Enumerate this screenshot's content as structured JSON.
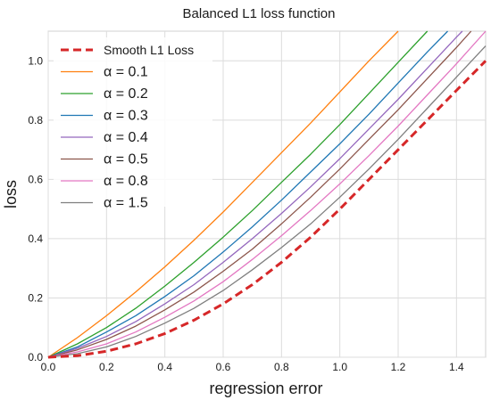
{
  "chart_data": {
    "type": "line",
    "title": "Balanced L1 loss function",
    "xlabel": "regression error",
    "ylabel": "loss",
    "xlim": [
      0,
      1.5
    ],
    "ylim": [
      0,
      1.1
    ],
    "x_ticks": [
      "0.0",
      "0.2",
      "0.4",
      "0.6",
      "0.8",
      "1.0",
      "1.2",
      "1.4"
    ],
    "y_ticks": [
      "0.0",
      "0.2",
      "0.4",
      "0.6",
      "0.8",
      "1.0"
    ],
    "grid": true,
    "legend_position": "top-left",
    "series": [
      {
        "name": "Smooth L1 Loss",
        "style": "dashed",
        "color": "#d62728",
        "points": [
          [
            0,
            0
          ],
          [
            0.1,
            0.005
          ],
          [
            0.2,
            0.02
          ],
          [
            0.3,
            0.045
          ],
          [
            0.4,
            0.08
          ],
          [
            0.5,
            0.125
          ],
          [
            0.6,
            0.18
          ],
          [
            0.7,
            0.245
          ],
          [
            0.8,
            0.32
          ],
          [
            0.9,
            0.405
          ],
          [
            1.0,
            0.5
          ],
          [
            1.1,
            0.6
          ],
          [
            1.2,
            0.7
          ],
          [
            1.3,
            0.8
          ],
          [
            1.4,
            0.9
          ],
          [
            1.5,
            1.0
          ]
        ]
      },
      {
        "name": "α = 0.1",
        "style": "solid",
        "color": "#ff7f0e",
        "points": [
          [
            0,
            0
          ],
          [
            0.1,
            0.066
          ],
          [
            0.2,
            0.14
          ],
          [
            0.3,
            0.22
          ],
          [
            0.4,
            0.305
          ],
          [
            0.5,
            0.395
          ],
          [
            0.6,
            0.49
          ],
          [
            0.7,
            0.59
          ],
          [
            0.8,
            0.69
          ],
          [
            0.9,
            0.79
          ],
          [
            1.0,
            0.895
          ],
          [
            1.1,
            1.0
          ],
          [
            1.2,
            1.1
          ]
        ]
      },
      {
        "name": "α = 0.2",
        "style": "solid",
        "color": "#2ca02c",
        "points": [
          [
            0,
            0
          ],
          [
            0.1,
            0.045
          ],
          [
            0.2,
            0.1
          ],
          [
            0.3,
            0.165
          ],
          [
            0.4,
            0.24
          ],
          [
            0.5,
            0.32
          ],
          [
            0.6,
            0.405
          ],
          [
            0.7,
            0.495
          ],
          [
            0.8,
            0.59
          ],
          [
            0.9,
            0.685
          ],
          [
            1.0,
            0.785
          ],
          [
            1.1,
            0.89
          ],
          [
            1.2,
            0.995
          ],
          [
            1.3,
            1.1
          ]
        ]
      },
      {
        "name": "α = 0.3",
        "style": "solid",
        "color": "#1f77b4",
        "points": [
          [
            0,
            0
          ],
          [
            0.1,
            0.035
          ],
          [
            0.2,
            0.085
          ],
          [
            0.3,
            0.14
          ],
          [
            0.4,
            0.205
          ],
          [
            0.5,
            0.275
          ],
          [
            0.6,
            0.355
          ],
          [
            0.7,
            0.44
          ],
          [
            0.8,
            0.53
          ],
          [
            0.9,
            0.625
          ],
          [
            1.0,
            0.72
          ],
          [
            1.1,
            0.82
          ],
          [
            1.2,
            0.925
          ],
          [
            1.3,
            1.03
          ],
          [
            1.37,
            1.1
          ]
        ]
      },
      {
        "name": "α = 0.4",
        "style": "solid",
        "color": "#9467bd",
        "points": [
          [
            0,
            0
          ],
          [
            0.1,
            0.03
          ],
          [
            0.2,
            0.07
          ],
          [
            0.3,
            0.12
          ],
          [
            0.4,
            0.18
          ],
          [
            0.5,
            0.245
          ],
          [
            0.6,
            0.32
          ],
          [
            0.7,
            0.4
          ],
          [
            0.8,
            0.485
          ],
          [
            0.9,
            0.575
          ],
          [
            1.0,
            0.67
          ],
          [
            1.1,
            0.77
          ],
          [
            1.2,
            0.87
          ],
          [
            1.3,
            0.975
          ],
          [
            1.4,
            1.08
          ],
          [
            1.42,
            1.1
          ]
        ]
      },
      {
        "name": "α = 0.5",
        "style": "solid",
        "color": "#8c564b",
        "points": [
          [
            0,
            0
          ],
          [
            0.1,
            0.025
          ],
          [
            0.2,
            0.06
          ],
          [
            0.3,
            0.105
          ],
          [
            0.4,
            0.16
          ],
          [
            0.5,
            0.22
          ],
          [
            0.6,
            0.29
          ],
          [
            0.7,
            0.365
          ],
          [
            0.8,
            0.45
          ],
          [
            0.9,
            0.54
          ],
          [
            1.0,
            0.635
          ],
          [
            1.1,
            0.735
          ],
          [
            1.2,
            0.835
          ],
          [
            1.3,
            0.94
          ],
          [
            1.4,
            1.045
          ],
          [
            1.45,
            1.1
          ]
        ]
      },
      {
        "name": "α = 0.8",
        "style": "solid",
        "color": "#e377c2",
        "points": [
          [
            0,
            0
          ],
          [
            0.1,
            0.018
          ],
          [
            0.2,
            0.045
          ],
          [
            0.3,
            0.085
          ],
          [
            0.4,
            0.135
          ],
          [
            0.5,
            0.19
          ],
          [
            0.6,
            0.255
          ],
          [
            0.7,
            0.33
          ],
          [
            0.8,
            0.41
          ],
          [
            0.9,
            0.495
          ],
          [
            1.0,
            0.585
          ],
          [
            1.1,
            0.68
          ],
          [
            1.2,
            0.78
          ],
          [
            1.3,
            0.885
          ],
          [
            1.4,
            0.99
          ],
          [
            1.5,
            1.1
          ]
        ]
      },
      {
        "name": "α = 1.5",
        "style": "solid",
        "color": "#7f7f7f",
        "points": [
          [
            0,
            0
          ],
          [
            0.1,
            0.012
          ],
          [
            0.2,
            0.035
          ],
          [
            0.3,
            0.07
          ],
          [
            0.4,
            0.115
          ],
          [
            0.5,
            0.165
          ],
          [
            0.6,
            0.225
          ],
          [
            0.7,
            0.295
          ],
          [
            0.8,
            0.37
          ],
          [
            0.9,
            0.45
          ],
          [
            1.0,
            0.54
          ],
          [
            1.1,
            0.635
          ],
          [
            1.2,
            0.735
          ],
          [
            1.3,
            0.84
          ],
          [
            1.4,
            0.945
          ],
          [
            1.5,
            1.05
          ]
        ]
      }
    ]
  }
}
